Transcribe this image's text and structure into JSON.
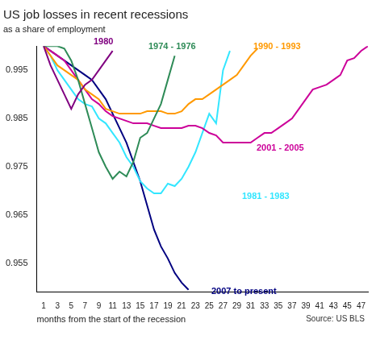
{
  "chart_data": {
    "type": "line",
    "title": "US job losses in recent recessions",
    "subtitle": "as a share of employment",
    "x_label": "months from the start of the recession",
    "source": "Source: US BLS",
    "x": [
      1,
      2,
      3,
      4,
      5,
      6,
      7,
      8,
      9,
      10,
      11,
      12,
      13,
      14,
      15,
      16,
      17,
      18,
      19,
      20,
      21,
      22,
      23,
      24,
      25,
      26,
      27,
      28,
      29,
      30,
      31,
      32,
      33,
      34,
      35,
      36,
      37,
      38,
      39,
      40,
      41,
      42,
      43,
      44,
      45,
      46,
      47,
      48
    ],
    "xlim": [
      0,
      48
    ],
    "xticks": [
      1,
      3,
      5,
      7,
      9,
      11,
      13,
      15,
      17,
      19,
      21,
      23,
      25,
      27,
      29,
      31,
      33,
      35,
      37,
      39,
      41,
      43,
      45,
      47
    ],
    "ylim": [
      0.949,
      1.0
    ],
    "yticks": [
      0.955,
      0.965,
      0.975,
      0.985,
      0.995
    ],
    "grid": false,
    "series": [
      {
        "name": "1980",
        "color": "#800080",
        "values": [
          1.0,
          0.996,
          0.993,
          0.99,
          0.987,
          0.99,
          0.992,
          0.993,
          0.995,
          0.997,
          0.999,
          null,
          null,
          null,
          null,
          null,
          null,
          null,
          null,
          null,
          null,
          null,
          null,
          null,
          null,
          null,
          null,
          null,
          null,
          null,
          null,
          null,
          null,
          null,
          null,
          null,
          null,
          null,
          null,
          null,
          null,
          null,
          null,
          null,
          null,
          null,
          null,
          null
        ]
      },
      {
        "name": "1974 - 1976",
        "color": "#2E8B57",
        "values": [
          1.0,
          1.0,
          1.0,
          0.9995,
          0.997,
          0.993,
          0.988,
          0.983,
          0.978,
          0.975,
          0.9725,
          0.974,
          0.973,
          0.976,
          0.981,
          0.982,
          0.985,
          0.988,
          0.993,
          0.998,
          null,
          null,
          null,
          null,
          null,
          null,
          null,
          null,
          null,
          null,
          null,
          null,
          null,
          null,
          null,
          null,
          null,
          null,
          null,
          null,
          null,
          null,
          null,
          null,
          null,
          null,
          null,
          null
        ]
      },
      {
        "name": "1990 - 1993",
        "color": "#FF9900",
        "values": [
          1.0,
          0.998,
          0.996,
          0.995,
          0.994,
          0.993,
          0.991,
          0.99,
          0.989,
          0.987,
          0.9865,
          0.986,
          0.986,
          0.986,
          0.986,
          0.9865,
          0.9865,
          0.9865,
          0.986,
          0.986,
          0.9865,
          0.988,
          0.989,
          0.989,
          0.99,
          0.991,
          0.992,
          0.993,
          0.994,
          0.996,
          0.998,
          0.9995,
          null,
          null,
          null,
          null,
          null,
          null,
          null,
          null,
          null,
          null,
          null,
          null,
          null,
          null,
          null,
          null
        ]
      },
      {
        "name": "2001 - 2005",
        "color": "#CC0099",
        "values": [
          1.0,
          0.999,
          0.998,
          0.997,
          0.995,
          0.993,
          0.991,
          0.989,
          0.988,
          0.9865,
          0.9855,
          0.985,
          0.9845,
          0.984,
          0.984,
          0.984,
          0.9835,
          0.983,
          0.983,
          0.983,
          0.983,
          0.9835,
          0.9835,
          0.983,
          0.982,
          0.9815,
          0.98,
          0.98,
          0.98,
          0.98,
          0.98,
          0.981,
          0.982,
          0.982,
          0.983,
          0.984,
          0.985,
          0.987,
          0.989,
          0.991,
          0.9915,
          0.992,
          0.993,
          0.994,
          0.997,
          0.9975,
          0.999,
          1.0
        ]
      },
      {
        "name": "1981 - 1983",
        "color": "#33E6FF",
        "values": [
          1.0,
          0.998,
          0.995,
          0.993,
          0.991,
          0.989,
          0.988,
          0.9875,
          0.985,
          0.984,
          0.982,
          0.98,
          0.977,
          0.975,
          0.972,
          0.9705,
          0.9695,
          0.9695,
          0.9715,
          0.971,
          0.9725,
          0.975,
          0.978,
          0.982,
          0.986,
          0.984,
          0.995,
          0.999,
          null,
          null,
          null,
          null,
          null,
          null,
          null,
          null,
          null,
          null,
          null,
          null,
          null,
          null,
          null,
          null,
          null,
          null,
          null,
          null
        ]
      },
      {
        "name": "2007 to present",
        "color": "#000080",
        "values": [
          1.0,
          0.999,
          0.998,
          0.997,
          0.996,
          0.995,
          0.994,
          0.993,
          0.991,
          0.989,
          0.986,
          0.983,
          0.98,
          0.976,
          0.972,
          0.967,
          0.962,
          0.9585,
          0.956,
          0.953,
          0.951,
          0.9495,
          null,
          null,
          null,
          null,
          null,
          null,
          null,
          null,
          null,
          null,
          null,
          null,
          null,
          null,
          null,
          null,
          null,
          null,
          null,
          null,
          null,
          null,
          null,
          null,
          null,
          null
        ]
      }
    ]
  }
}
